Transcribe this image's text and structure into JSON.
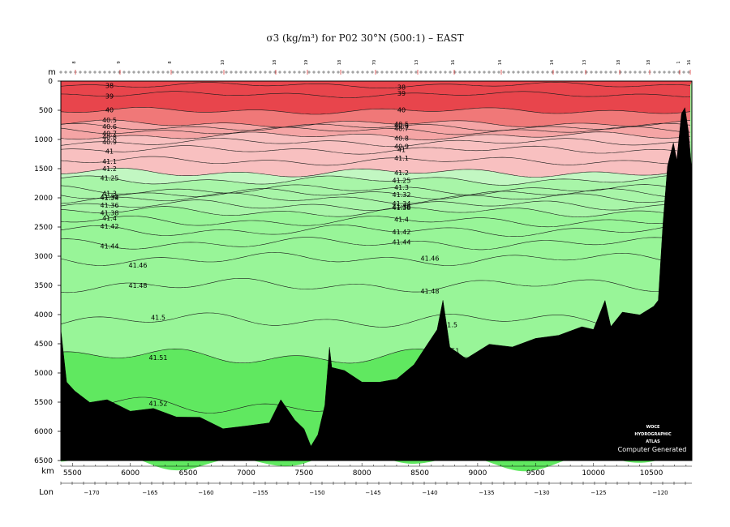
{
  "chart_data": {
    "type": "area",
    "title": "σ3 (kg/m³) for P02 30°N (500:1) – EAST",
    "y_axis": {
      "label": "m",
      "ticks": [
        0,
        500,
        1000,
        1500,
        2000,
        2500,
        3000,
        3500,
        4000,
        4500,
        5000,
        5500,
        6000,
        6500
      ],
      "ylim": [
        0,
        6500
      ],
      "inverted": true
    },
    "x_axis": {
      "label": "km",
      "ticks": [
        5500,
        6000,
        6500,
        7000,
        7500,
        8000,
        8500,
        9000,
        9500,
        10000,
        10500
      ],
      "xlim": [
        5400,
        10850
      ]
    },
    "lon_axis": {
      "label": "Lon",
      "ticks": [
        -170,
        -165,
        -160,
        -155,
        -150,
        -145,
        -140,
        -135,
        -130,
        -125,
        -120
      ]
    },
    "station_labels": [
      "8",
      "9",
      "8",
      "10",
      "18",
      "19",
      "18",
      "70",
      "13",
      "16",
      "14",
      "14",
      "13",
      "18",
      "18",
      "1",
      "16"
    ],
    "colors": {
      "red_top": "#e8454c",
      "red_mid": "#f07878",
      "red_light": "#f5a5a5",
      "red_pale": "#f8c0c0",
      "green_pale": "#c2f7c2",
      "green_light": "#a8f5a8",
      "green_mid": "#98f598",
      "green_deep": "#60e860",
      "bottom": "#000000"
    },
    "isopycnals": [
      {
        "label": "38",
        "depth": 70
      },
      {
        "label": "39",
        "depth": 230
      },
      {
        "label": "40",
        "depth": 510
      },
      {
        "label": "40.5",
        "depth": 730
      },
      {
        "label": "40.6",
        "depth": 790
      },
      {
        "label": "40.7",
        "depth": 850
      },
      {
        "label": "40.8",
        "depth": 940
      },
      {
        "label": "40.9",
        "depth": 1050
      },
      {
        "label": "41",
        "depth": 1180
      },
      {
        "label": "41.1",
        "depth": 1370
      },
      {
        "label": "41.2",
        "depth": 1570
      },
      {
        "label": "41.25",
        "depth": 1700
      },
      {
        "label": "41.3",
        "depth": 1860
      },
      {
        "label": "41.32",
        "depth": 1930
      },
      {
        "label": "41.34",
        "depth": 2010
      },
      {
        "label": "41.36",
        "depth": 2130
      },
      {
        "label": "41.38",
        "depth": 2240
      },
      {
        "label": "41.4",
        "depth": 2400
      },
      {
        "label": "41.42",
        "depth": 2560
      },
      {
        "label": "41.44",
        "depth": 2780
      },
      {
        "label": "41.46",
        "depth": 3050
      },
      {
        "label": "41.48",
        "depth": 3500
      },
      {
        "label": "41.5",
        "depth": 4100
      },
      {
        "label": "41.51",
        "depth": 4720
      },
      {
        "label": "41.52",
        "depth": 5550
      }
    ],
    "bathymetry": [
      {
        "x": 5400,
        "depth": 4300
      },
      {
        "x": 5450,
        "depth": 5100
      },
      {
        "x": 5520,
        "depth": 5350
      },
      {
        "x": 5650,
        "depth": 5450
      },
      {
        "x": 5800,
        "depth": 5500
      },
      {
        "x": 6000,
        "depth": 5600
      },
      {
        "x": 6200,
        "depth": 5650
      },
      {
        "x": 6400,
        "depth": 5700
      },
      {
        "x": 6600,
        "depth": 5800
      },
      {
        "x": 6800,
        "depth": 5900
      },
      {
        "x": 7000,
        "depth": 5950
      },
      {
        "x": 7200,
        "depth": 5800
      },
      {
        "x": 7300,
        "depth": 5500
      },
      {
        "x": 7420,
        "depth": 5750
      },
      {
        "x": 7500,
        "depth": 6000
      },
      {
        "x": 7560,
        "depth": 6200
      },
      {
        "x": 7620,
        "depth": 6100
      },
      {
        "x": 7680,
        "depth": 5500
      },
      {
        "x": 7720,
        "depth": 4600
      },
      {
        "x": 7740,
        "depth": 4850
      },
      {
        "x": 7850,
        "depth": 5000
      },
      {
        "x": 8000,
        "depth": 5100
      },
      {
        "x": 8150,
        "depth": 5200
      },
      {
        "x": 8300,
        "depth": 5050
      },
      {
        "x": 8450,
        "depth": 4900
      },
      {
        "x": 8550,
        "depth": 4500
      },
      {
        "x": 8650,
        "depth": 4300
      },
      {
        "x": 8700,
        "depth": 3700
      },
      {
        "x": 8760,
        "depth": 4600
      },
      {
        "x": 8900,
        "depth": 4700
      },
      {
        "x": 9100,
        "depth": 4550
      },
      {
        "x": 9300,
        "depth": 4500
      },
      {
        "x": 9500,
        "depth": 4450
      },
      {
        "x": 9700,
        "depth": 4300
      },
      {
        "x": 9900,
        "depth": 4250
      },
      {
        "x": 10000,
        "depth": 4200
      },
      {
        "x": 10100,
        "depth": 3800
      },
      {
        "x": 10150,
        "depth": 4150
      },
      {
        "x": 10250,
        "depth": 4000
      },
      {
        "x": 10400,
        "depth": 3950
      },
      {
        "x": 10520,
        "depth": 3900
      },
      {
        "x": 10560,
        "depth": 3700
      },
      {
        "x": 10600,
        "depth": 2500
      },
      {
        "x": 10640,
        "depth": 1400
      },
      {
        "x": 10690,
        "depth": 1100
      },
      {
        "x": 10720,
        "depth": 1300
      },
      {
        "x": 10760,
        "depth": 600
      },
      {
        "x": 10790,
        "depth": 400
      },
      {
        "x": 10820,
        "depth": 900
      },
      {
        "x": 10850,
        "depth": 1500
      }
    ],
    "watermark": [
      "WOCE",
      "HYDROGRAPHIC",
      "ATLAS"
    ],
    "credit": "Computer Generated"
  }
}
